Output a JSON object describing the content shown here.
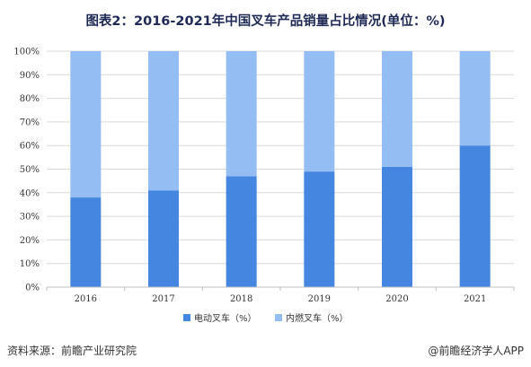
{
  "title": "图表2：2016-2021年中国叉车产品销量占比情况(单位：%)",
  "footer": {
    "source": "资料来源：前瞻产业研究院",
    "brand": "@前瞻经济学人APP"
  },
  "colors": {
    "electric": "#4486e0",
    "internal": "#94bdf3",
    "grid": "#d9d9d9",
    "axis": "#bfbfbf"
  },
  "chart_data": {
    "type": "bar",
    "stacked": true,
    "percent_stacked": true,
    "title": "图表2：2016-2021年中国叉车产品销量占比情况(单位：%)",
    "categories": [
      "2016",
      "2017",
      "2018",
      "2019",
      "2020",
      "2021"
    ],
    "series": [
      {
        "name": "电动叉车（%）",
        "values": [
          38,
          41,
          47,
          49,
          51,
          60
        ]
      },
      {
        "name": "内燃叉车（%）",
        "values": [
          62,
          59,
          53,
          51,
          49,
          40
        ]
      }
    ],
    "y_ticks": [
      "0%",
      "10%",
      "20%",
      "30%",
      "40%",
      "50%",
      "60%",
      "70%",
      "80%",
      "90%",
      "100%"
    ],
    "ylim": [
      0,
      100
    ],
    "grid": true,
    "legend_position": "bottom"
  }
}
